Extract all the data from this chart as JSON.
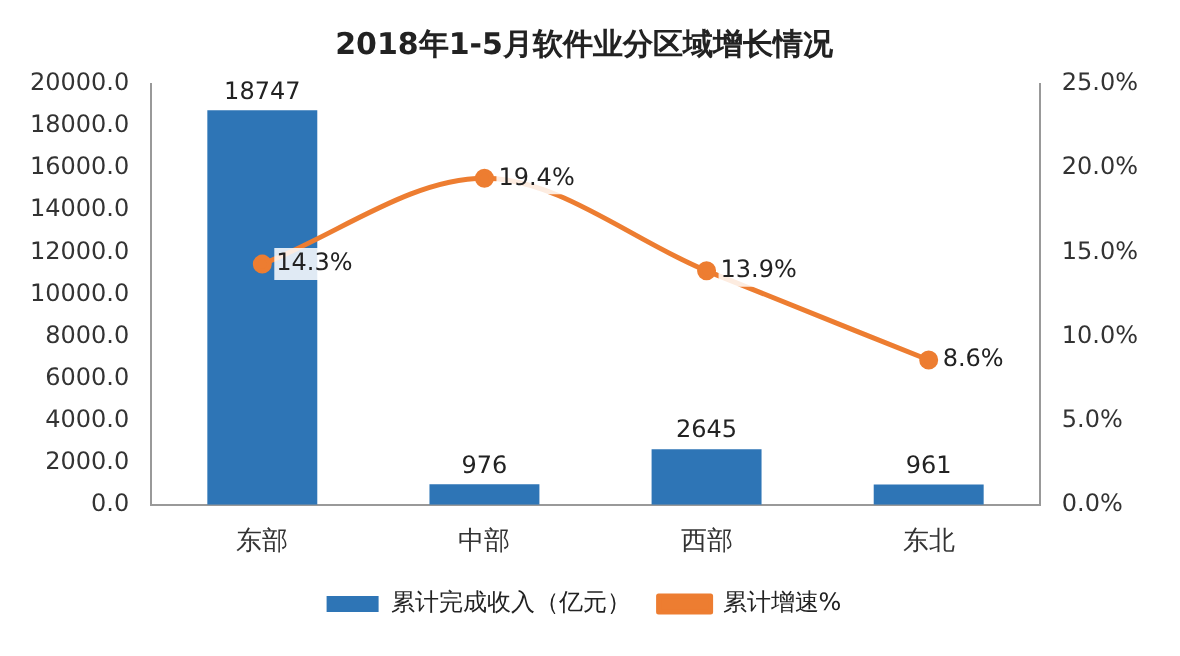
{
  "chart_data": {
    "type": "bar",
    "title": "2018年1-5月软件业分区域增长情况",
    "categories": [
      "东部",
      "中部",
      "西部",
      "东北"
    ],
    "series": [
      {
        "name": "累计完成收入（亿元）",
        "color": "#2e75b6",
        "values": [
          18747,
          976,
          2645,
          961
        ],
        "value_labels": [
          "18747",
          "976",
          "2645",
          "961"
        ]
      },
      {
        "name": "累计增速%",
        "type": "line",
        "axis": "y2",
        "color": "#ed7d31",
        "values": [
          14.3,
          19.4,
          13.9,
          8.6
        ],
        "value_labels": [
          "14.3%",
          "19.4%",
          "13.9%",
          "8.6%"
        ]
      }
    ],
    "ylim": [
      0,
      20000
    ],
    "yticks": [
      {
        "value": 0,
        "label": "0.0"
      },
      {
        "value": 2000,
        "label": "2000.0"
      },
      {
        "value": 4000,
        "label": "4000.0"
      },
      {
        "value": 6000,
        "label": "6000.0"
      },
      {
        "value": 8000,
        "label": "8000.0"
      },
      {
        "value": 10000,
        "label": "10000.0"
      },
      {
        "value": 12000,
        "label": "12000.0"
      },
      {
        "value": 14000,
        "label": "14000.0"
      },
      {
        "value": 16000,
        "label": "16000.0"
      },
      {
        "value": 18000,
        "label": "18000.0"
      },
      {
        "value": 20000,
        "label": "20000.0"
      }
    ],
    "y2lim": [
      0,
      25
    ],
    "y2ticks": [
      {
        "value": 0,
        "label": "0.0%"
      },
      {
        "value": 5,
        "label": "5.0%"
      },
      {
        "value": 10,
        "label": "10.0%"
      },
      {
        "value": 15,
        "label": "15.0%"
      },
      {
        "value": 20,
        "label": "20.0%"
      },
      {
        "value": 25,
        "label": "25.0%"
      }
    ],
    "grid": false,
    "legend": "bottom",
    "marker": "circle",
    "line_style": "solid"
  }
}
